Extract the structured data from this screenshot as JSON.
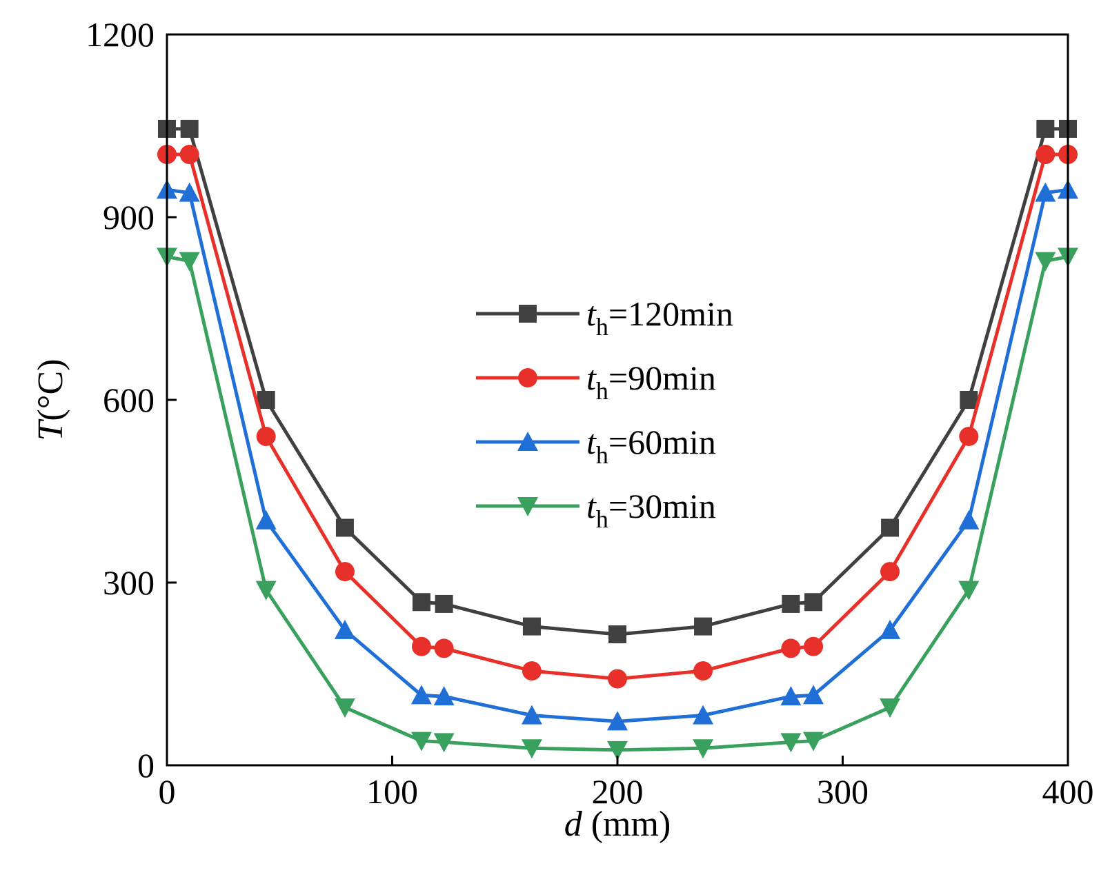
{
  "chart_data": {
    "type": "line",
    "title": "",
    "xlabel_var": "d",
    "xlabel_unit": " (mm)",
    "ylabel_var": "T",
    "ylabel_unit": "(°C)",
    "xlim": [
      0,
      400
    ],
    "ylim": [
      0,
      1200
    ],
    "xticks": [
      0,
      100,
      200,
      300,
      400
    ],
    "yticks": [
      0,
      300,
      600,
      900,
      1200
    ],
    "x": [
      0,
      10,
      44,
      79,
      113,
      123,
      162,
      200,
      238,
      277,
      287,
      321,
      356,
      390,
      400
    ],
    "legend_position": "center",
    "series": [
      {
        "name_var": "t",
        "name_sub": "h",
        "name_rest": "=120min",
        "color": "#404040",
        "marker": "square",
        "values": [
          1045,
          1045,
          600,
          390,
          268,
          265,
          228,
          215,
          228,
          265,
          268,
          390,
          600,
          1045,
          1045
        ]
      },
      {
        "name_var": "t",
        "name_sub": "h",
        "name_rest": "=90min",
        "color": "#e8302b",
        "marker": "circle",
        "values": [
          1003,
          1003,
          540,
          318,
          195,
          192,
          155,
          142,
          155,
          192,
          195,
          318,
          540,
          1003,
          1003
        ]
      },
      {
        "name_var": "t",
        "name_sub": "h",
        "name_rest": "=60min",
        "color": "#1f6fd6",
        "marker": "triangle-up",
        "values": [
          945,
          940,
          402,
          222,
          115,
          113,
          82,
          72,
          82,
          113,
          115,
          222,
          402,
          940,
          945
        ]
      },
      {
        "name_var": "t",
        "name_sub": "h",
        "name_rest": "=30min",
        "color": "#3aa05e",
        "marker": "triangle-down",
        "values": [
          835,
          828,
          288,
          95,
          40,
          38,
          28,
          25,
          28,
          38,
          40,
          95,
          288,
          828,
          835
        ]
      }
    ]
  }
}
